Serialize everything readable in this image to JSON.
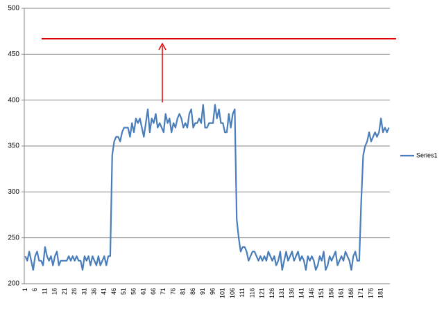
{
  "chart_data": {
    "type": "line",
    "categories": [
      1,
      null,
      null,
      null,
      null,
      6,
      null,
      null,
      null,
      null,
      11,
      null,
      null,
      null,
      null,
      16,
      null,
      null,
      null,
      null,
      21,
      null,
      null,
      null,
      null,
      26,
      null,
      null,
      null,
      null,
      31,
      null,
      null,
      null,
      null,
      36,
      null,
      null,
      null,
      null,
      41,
      null,
      null,
      null,
      null,
      46,
      null,
      null,
      null,
      null,
      51,
      null,
      null,
      null,
      null,
      56,
      null,
      null,
      null,
      null,
      61,
      null,
      null,
      null,
      null,
      66,
      null,
      null,
      null,
      null,
      71,
      null,
      null,
      null,
      null,
      76,
      null,
      null,
      null,
      null,
      81,
      null,
      null,
      null,
      null,
      86,
      null,
      null,
      null,
      null,
      91,
      null,
      null,
      null,
      null,
      96,
      null,
      null,
      null,
      null,
      101,
      null,
      null,
      null,
      null,
      106,
      null,
      null,
      null,
      null,
      111,
      null,
      null,
      null,
      null,
      116,
      null,
      null,
      null,
      null,
      121,
      null,
      null,
      null,
      null,
      126,
      null,
      null,
      null,
      null,
      131,
      null,
      null,
      null,
      null,
      136,
      null,
      null,
      null,
      null,
      141,
      null,
      null,
      null,
      null,
      146,
      null,
      null,
      null,
      null,
      151,
      null,
      null,
      null,
      null,
      156,
      null,
      null,
      null,
      null,
      161,
      null,
      null,
      null,
      null,
      166,
      null,
      null,
      null,
      null,
      171,
      null,
      null,
      null,
      null,
      176,
      null,
      null,
      null,
      null,
      181,
      null,
      null,
      null,
      null
    ],
    "series": [
      {
        "name": "Series1",
        "color": "#4a7ebb",
        "values": [
          230,
          225,
          235,
          225,
          215,
          230,
          235,
          225,
          225,
          220,
          240,
          230,
          225,
          230,
          220,
          230,
          235,
          220,
          225,
          225,
          225,
          225,
          230,
          225,
          230,
          225,
          230,
          225,
          225,
          215,
          230,
          225,
          230,
          220,
          230,
          225,
          220,
          230,
          220,
          225,
          230,
          220,
          230,
          230,
          340,
          355,
          360,
          360,
          355,
          365,
          370,
          370,
          370,
          360,
          375,
          365,
          380,
          375,
          380,
          370,
          360,
          375,
          390,
          365,
          380,
          375,
          385,
          370,
          375,
          370,
          365,
          385,
          375,
          380,
          365,
          375,
          370,
          380,
          385,
          380,
          370,
          375,
          370,
          385,
          390,
          370,
          375,
          375,
          380,
          375,
          395,
          370,
          370,
          375,
          375,
          375,
          395,
          380,
          390,
          375,
          375,
          365,
          365,
          385,
          370,
          385,
          390,
          270,
          250,
          235,
          240,
          240,
          235,
          225,
          230,
          235,
          235,
          230,
          225,
          230,
          225,
          230,
          225,
          235,
          230,
          225,
          230,
          220,
          225,
          235,
          215,
          225,
          235,
          225,
          230,
          235,
          225,
          230,
          235,
          225,
          230,
          225,
          215,
          230,
          225,
          230,
          225,
          215,
          220,
          230,
          225,
          235,
          215,
          220,
          230,
          225,
          230,
          235,
          220,
          225,
          230,
          225,
          235,
          230,
          225,
          215,
          230,
          235,
          225,
          225,
          290,
          340,
          350,
          355,
          365,
          355,
          360,
          365,
          360,
          365,
          380,
          365,
          370,
          365,
          370
        ]
      }
    ],
    "ylim": [
      200,
      500
    ],
    "yticks": [
      200,
      250,
      300,
      350,
      400,
      450,
      500
    ],
    "grid": true,
    "legend": "right"
  }
}
